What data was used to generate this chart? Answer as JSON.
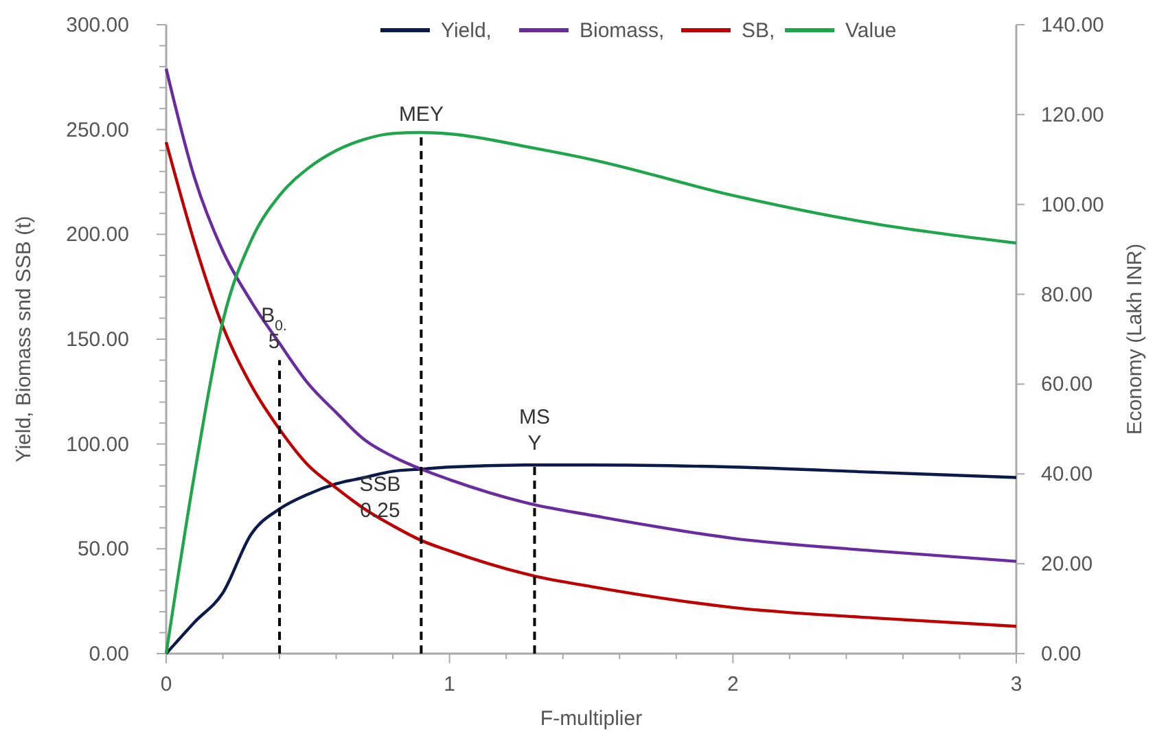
{
  "chart_data": {
    "type": "line",
    "xlabel": "F-multiplier",
    "ylabel": "Yield, Biomass snd SSB (t)",
    "y2label": "Economy (Lakh INR)",
    "x": [
      0,
      0.1,
      0.2,
      0.3,
      0.4,
      0.5,
      0.6,
      0.7,
      0.8,
      0.9,
      1,
      1.3,
      1.5,
      2,
      2.5,
      3
    ],
    "series": [
      {
        "name": "Yield,",
        "color": "#0a1a4a",
        "values": [
          0,
          15,
          29,
          57,
          69,
          76,
          81,
          84,
          87,
          88,
          89,
          90,
          90,
          89,
          86.5,
          84
        ]
      },
      {
        "name": "Biomass,",
        "color": "#6a2aa0",
        "values": [
          279,
          227,
          192,
          168,
          148,
          129,
          115,
          102,
          94,
          88,
          83,
          71,
          66,
          55,
          49,
          44
        ]
      },
      {
        "name": "SB,",
        "color": "#c00000",
        "values": [
          244,
          196,
          156,
          128,
          107,
          90,
          79,
          69,
          61,
          54,
          49,
          37,
          32,
          22,
          17,
          13
        ]
      },
      {
        "name": "Value",
        "color": "#1fa64a",
        "axis": "y2",
        "values": [
          0,
          40,
          74,
          92,
          102,
          108,
          112,
          114.5,
          115.8,
          116,
          115.7,
          112.5,
          110,
          102,
          95.7,
          91.4
        ]
      },
      {
        "color": "#000000",
        "line_style": "dashed",
        "x": [
          0.4,
          0.4
        ],
        "values": [
          0,
          140
        ]
      },
      {
        "color": "#000000",
        "line_style": "dashed",
        "axis": "y2",
        "x": [
          0.9,
          0.9
        ],
        "values": [
          0,
          116
        ]
      },
      {
        "color": "#000000",
        "line_style": "dashed",
        "x": [
          1.3,
          1.3
        ],
        "values": [
          0,
          90
        ]
      }
    ],
    "annotations": [
      {
        "text": "B$_{0.}$\n5",
        "x": 0.4,
        "y": 140
      },
      {
        "text": "MEY",
        "x": 0.9,
        "y": 249
      },
      {
        "text": "SSB\n0.25",
        "x": 0.9,
        "y": 54
      },
      {
        "text": "MS\nY",
        "x": 1.3,
        "y": 90
      }
    ],
    "xlim": [
      0,
      3
    ],
    "ylim": [
      0,
      300
    ],
    "y2lim": [
      0,
      140
    ],
    "xticks": [
      0,
      {
        "value": 0.2,
        "label": null
      },
      {
        "value": 0.4,
        "label": null
      },
      {
        "value": 0.6,
        "label": null
      },
      {
        "value": 0.8,
        "label": null
      },
      1,
      {
        "value": 1.2,
        "label": null
      },
      {
        "value": 1.4,
        "label": null
      },
      {
        "value": 1.6,
        "label": null
      },
      {
        "value": 1.8,
        "label": null
      },
      2,
      {
        "value": 2.2,
        "label": null
      },
      {
        "value": 2.4,
        "label": null
      },
      {
        "value": 2.6,
        "label": null
      },
      {
        "value": 2.8,
        "label": null
      },
      3
    ],
    "yticks": [
      {
        "value": 0,
        "label": "0.00"
      },
      {
        "value": 10,
        "label": null
      },
      {
        "value": 20,
        "label": null
      },
      {
        "value": 30,
        "label": null
      },
      {
        "value": 40,
        "label": null
      },
      {
        "value": 50,
        "label": "50.00"
      },
      {
        "value": 60,
        "label": null
      },
      {
        "value": 70,
        "label": null
      },
      {
        "value": 80,
        "label": null
      },
      {
        "value": 90,
        "label": null
      },
      {
        "value": 100,
        "label": "100.00"
      },
      {
        "value": 110,
        "label": null
      },
      {
        "value": 120,
        "label": null
      },
      {
        "value": 130,
        "label": null
      },
      {
        "value": 140,
        "label": null
      },
      {
        "value": 150,
        "label": "150.00"
      },
      {
        "value": 160,
        "label": null
      },
      {
        "value": 170,
        "label": null
      },
      {
        "value": 180,
        "label": null
      },
      {
        "value": 190,
        "label": null
      },
      {
        "value": 200,
        "label": "200.00"
      },
      {
        "value": 210,
        "label": null
      },
      {
        "value": 220,
        "label": null
      },
      {
        "value": 230,
        "label": null
      },
      {
        "value": 240,
        "label": null
      },
      {
        "value": 250,
        "label": "250.00"
      },
      {
        "value": 260,
        "label": null
      },
      {
        "value": 270,
        "label": null
      },
      {
        "value": 280,
        "label": null
      },
      {
        "value": 290,
        "label": null
      },
      {
        "value": 300,
        "label": "300.00"
      }
    ],
    "y2ticks": [
      {
        "value": 0,
        "label": "0.00"
      },
      {
        "value": 20,
        "label": "20.00"
      },
      {
        "value": 40,
        "label": "40.00"
      },
      {
        "value": 60,
        "label": "60.00"
      },
      {
        "value": 80,
        "label": "80.00"
      },
      {
        "value": 100,
        "label": "100.00"
      },
      {
        "value": 120,
        "label": "120.00"
      },
      {
        "value": 140,
        "label": "140.00"
      }
    ],
    "legend": "top",
    "grid": false,
    "marker": "none"
  }
}
